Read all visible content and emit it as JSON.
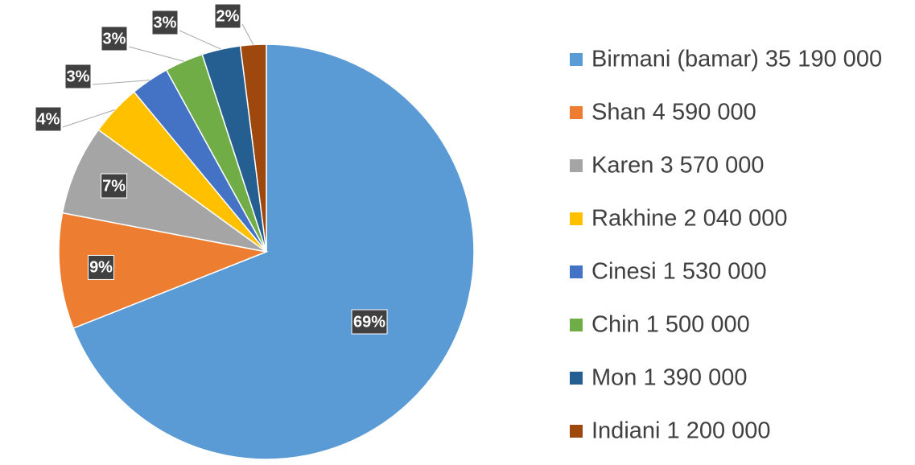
{
  "chart_data": {
    "type": "pie",
    "categories": [
      "Birmani (bamar) 35 190 000",
      "Shan 4 590 000",
      "Karen 3 570 000",
      "Rakhine 2 040 000",
      "Cinesi 1 530 000",
      "Chin 1 500 000",
      "Mon 1 390 000",
      "Indiani 1 200 000"
    ],
    "values": [
      69,
      9,
      7,
      4,
      3,
      3,
      3,
      2
    ],
    "value_labels": [
      "69%",
      "9%",
      "7%",
      "4%",
      "3%",
      "3%",
      "3%",
      "2%"
    ],
    "colors": [
      "#5b9bd5",
      "#ed7d31",
      "#a5a5a5",
      "#ffc000",
      "#4472c4",
      "#70ad47",
      "#255e91",
      "#9e480e"
    ],
    "legend": "right"
  }
}
